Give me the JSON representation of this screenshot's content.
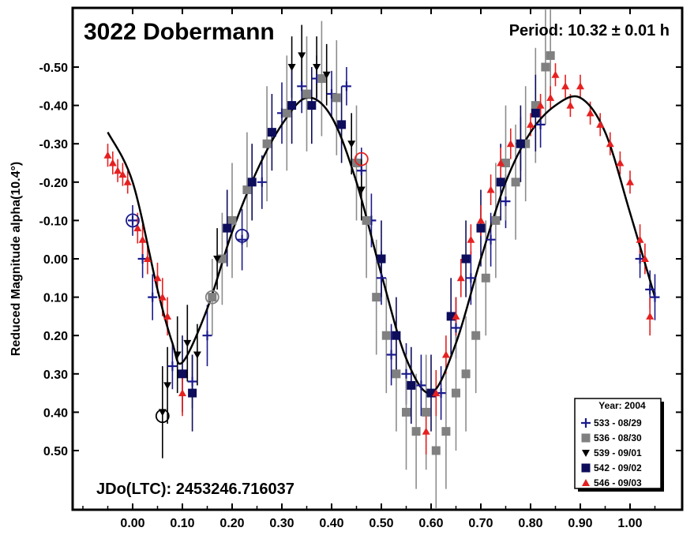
{
  "chart_data": {
    "type": "scatter",
    "title": "3022 Dobermann",
    "period_text": "Period: 10.32 ± 0.01 h",
    "epoch_text": "JDo(LTC): 2453246.716037",
    "ylabel": "Reduced Magnitude alpha(10.4°)",
    "xlabel": "",
    "xlim": [
      -0.12,
      1.12
    ],
    "ylim": [
      0.6,
      -0.6
    ],
    "y_inverted": true,
    "grid": false,
    "x_ticks": [
      0.0,
      0.1,
      0.2,
      0.3,
      0.4,
      0.5,
      0.6,
      0.7,
      0.8,
      0.9,
      1.0
    ],
    "x_tick_labels": [
      "0.00",
      "0.10",
      "0.20",
      "0.30",
      "0.40",
      "0.50",
      "0.60",
      "0.70",
      "0.80",
      "0.90",
      "1.00"
    ],
    "y_ticks": [
      -0.5,
      -0.4,
      -0.3,
      -0.2,
      -0.1,
      0.0,
      0.1,
      0.2,
      0.3,
      0.4,
      0.5
    ],
    "y_tick_labels": [
      "-0.50",
      "-0.40",
      "-0.30",
      "-0.20",
      "-0.10",
      "0.00",
      "0.10",
      "0.20",
      "0.30",
      "0.40",
      "0.50"
    ],
    "legend": {
      "title": "Year: 2004",
      "position": "bottom-right",
      "entries": [
        {
          "label": "533 - 08/29",
          "marker": "plus",
          "color": "#1a1a8c"
        },
        {
          "label": "536 - 08/30",
          "marker": "square",
          "color": "#808080"
        },
        {
          "label": "539 - 09/01",
          "marker": "triangle-down",
          "color": "#000000"
        },
        {
          "label": "542 - 09/02",
          "marker": "square",
          "color": "#0d0d5c"
        },
        {
          "label": "546 - 09/03",
          "marker": "triangle-up",
          "color": "#e62020"
        }
      ]
    },
    "fit_curve": {
      "name": "fourier-fit",
      "x": [
        -0.05,
        0.0,
        0.05,
        0.08,
        0.1,
        0.15,
        0.2,
        0.25,
        0.3,
        0.35,
        0.4,
        0.45,
        0.5,
        0.55,
        0.6,
        0.65,
        0.7,
        0.75,
        0.8,
        0.85,
        0.9,
        0.95,
        1.0,
        1.05
      ],
      "y": [
        -0.33,
        -0.2,
        0.08,
        0.22,
        0.27,
        0.13,
        -0.07,
        -0.23,
        -0.35,
        -0.42,
        -0.37,
        -0.2,
        0.04,
        0.26,
        0.35,
        0.22,
        0.0,
        -0.2,
        -0.33,
        -0.4,
        -0.42,
        -0.33,
        -0.12,
        0.1
      ]
    },
    "series": [
      {
        "name": "533 - 08/29",
        "x": [
          0.0,
          0.02,
          0.04,
          0.08,
          0.12,
          0.15,
          0.22,
          0.26,
          0.3,
          0.34,
          0.37,
          0.4,
          0.43,
          0.46,
          0.48,
          0.5,
          0.52,
          0.55,
          0.58,
          0.62,
          0.65,
          0.68,
          0.72,
          0.75,
          0.78,
          0.82,
          1.02,
          1.04,
          1.05
        ],
        "y": [
          -0.1,
          0.0,
          0.1,
          0.28,
          0.32,
          0.2,
          -0.05,
          -0.2,
          -0.38,
          -0.45,
          -0.47,
          -0.43,
          -0.45,
          -0.23,
          -0.1,
          0.05,
          0.25,
          0.3,
          0.33,
          0.35,
          0.18,
          0.05,
          -0.05,
          -0.15,
          -0.3,
          -0.35,
          0.0,
          0.08,
          0.1
        ],
        "err": [
          0.04,
          0.05,
          0.06,
          0.06,
          0.07,
          0.08,
          0.08,
          0.07,
          0.08,
          0.07,
          0.06,
          0.06,
          0.05,
          0.06,
          0.07,
          0.07,
          0.08,
          0.08,
          0.08,
          0.07,
          0.08,
          0.07,
          0.07,
          0.07,
          0.07,
          0.06,
          0.05,
          0.05,
          0.06
        ]
      },
      {
        "name": "536 - 08/30",
        "x": [
          0.16,
          0.18,
          0.2,
          0.23,
          0.27,
          0.31,
          0.35,
          0.38,
          0.41,
          0.45,
          0.47,
          0.49,
          0.51,
          0.53,
          0.55,
          0.57,
          0.59,
          0.61,
          0.63,
          0.65,
          0.67,
          0.69,
          0.71,
          0.73,
          0.75,
          0.77,
          0.79,
          0.81,
          0.83,
          0.84
        ],
        "y": [
          0.1,
          0.0,
          -0.1,
          -0.18,
          -0.3,
          -0.38,
          -0.43,
          -0.47,
          -0.42,
          -0.25,
          -0.1,
          0.1,
          0.2,
          0.3,
          0.4,
          0.45,
          0.4,
          0.5,
          0.45,
          0.35,
          0.3,
          0.2,
          0.05,
          -0.1,
          -0.25,
          -0.2,
          -0.3,
          -0.4,
          -0.5,
          -0.53
        ],
        "err": [
          0.1,
          0.12,
          0.15,
          0.15,
          0.15,
          0.15,
          0.15,
          0.15,
          0.15,
          0.15,
          0.15,
          0.15,
          0.15,
          0.15,
          0.15,
          0.15,
          0.15,
          0.15,
          0.15,
          0.15,
          0.15,
          0.15,
          0.15,
          0.15,
          0.15,
          0.15,
          0.15,
          0.15,
          0.15,
          0.12
        ]
      },
      {
        "name": "539 - 09/01",
        "x": [
          0.06,
          0.07,
          0.09,
          0.11,
          0.13,
          0.17,
          0.32,
          0.34,
          0.37,
          0.39,
          0.44,
          0.46
        ],
        "y": [
          0.4,
          0.33,
          0.25,
          0.22,
          0.25,
          0.0,
          -0.5,
          -0.53,
          -0.5,
          -0.48,
          -0.3,
          -0.18
        ],
        "err": [
          0.12,
          0.1,
          0.1,
          0.1,
          0.08,
          0.08,
          0.08,
          0.08,
          0.08,
          0.08,
          0.08,
          0.08
        ]
      },
      {
        "name": "542 - 09/02",
        "x": [
          0.1,
          0.12,
          0.19,
          0.24,
          0.28,
          0.32,
          0.36,
          0.42,
          0.5,
          0.53,
          0.56,
          0.6,
          0.64,
          0.67,
          0.7,
          0.74,
          0.78,
          0.81
        ],
        "y": [
          0.3,
          0.35,
          -0.08,
          -0.2,
          -0.33,
          -0.4,
          -0.4,
          -0.35,
          0.0,
          0.2,
          0.33,
          0.35,
          0.15,
          0.0,
          -0.08,
          -0.2,
          -0.3,
          -0.38
        ],
        "err": [
          0.1,
          0.1,
          0.1,
          0.1,
          0.1,
          0.1,
          0.1,
          0.1,
          0.1,
          0.1,
          0.1,
          0.1,
          0.1,
          0.1,
          0.1,
          0.1,
          0.1,
          0.1
        ]
      },
      {
        "name": "546 - 09/03",
        "x": [
          -0.05,
          -0.04,
          -0.03,
          -0.02,
          -0.01,
          0.01,
          0.02,
          0.03,
          0.05,
          0.06,
          0.07,
          0.1,
          0.59,
          0.61,
          0.63,
          0.65,
          0.66,
          0.68,
          0.7,
          0.72,
          0.74,
          0.76,
          0.8,
          0.82,
          0.84,
          0.85,
          0.87,
          0.88,
          0.9,
          0.92,
          0.94,
          0.96,
          0.98,
          1.0,
          1.02,
          1.03,
          1.04
        ],
        "y": [
          -0.27,
          -0.25,
          -0.23,
          -0.22,
          -0.2,
          -0.08,
          -0.05,
          0.0,
          0.05,
          0.1,
          0.15,
          0.35,
          0.45,
          0.35,
          0.25,
          0.15,
          0.05,
          -0.05,
          -0.1,
          -0.18,
          -0.25,
          -0.3,
          -0.35,
          -0.4,
          -0.42,
          -0.48,
          -0.45,
          -0.4,
          -0.45,
          -0.38,
          -0.35,
          -0.3,
          -0.25,
          -0.2,
          -0.05,
          0.0,
          0.15
        ],
        "err": [
          0.03,
          0.03,
          0.03,
          0.03,
          0.03,
          0.04,
          0.04,
          0.04,
          0.04,
          0.05,
          0.05,
          0.06,
          0.06,
          0.06,
          0.05,
          0.05,
          0.05,
          0.04,
          0.04,
          0.04,
          0.04,
          0.04,
          0.03,
          0.03,
          0.03,
          0.03,
          0.03,
          0.03,
          0.03,
          0.03,
          0.03,
          0.03,
          0.03,
          0.03,
          0.04,
          0.04,
          0.05
        ]
      }
    ],
    "circled_points": [
      {
        "x": 0.0,
        "y": -0.1,
        "color": "#1a1a8c"
      },
      {
        "x": 0.06,
        "y": 0.41,
        "color": "#000000"
      },
      {
        "x": 0.16,
        "y": 0.1,
        "color": "#808080"
      },
      {
        "x": 0.22,
        "y": -0.06,
        "color": "#1a1a8c"
      },
      {
        "x": 0.46,
        "y": -0.26,
        "color": "#e62020"
      }
    ]
  }
}
